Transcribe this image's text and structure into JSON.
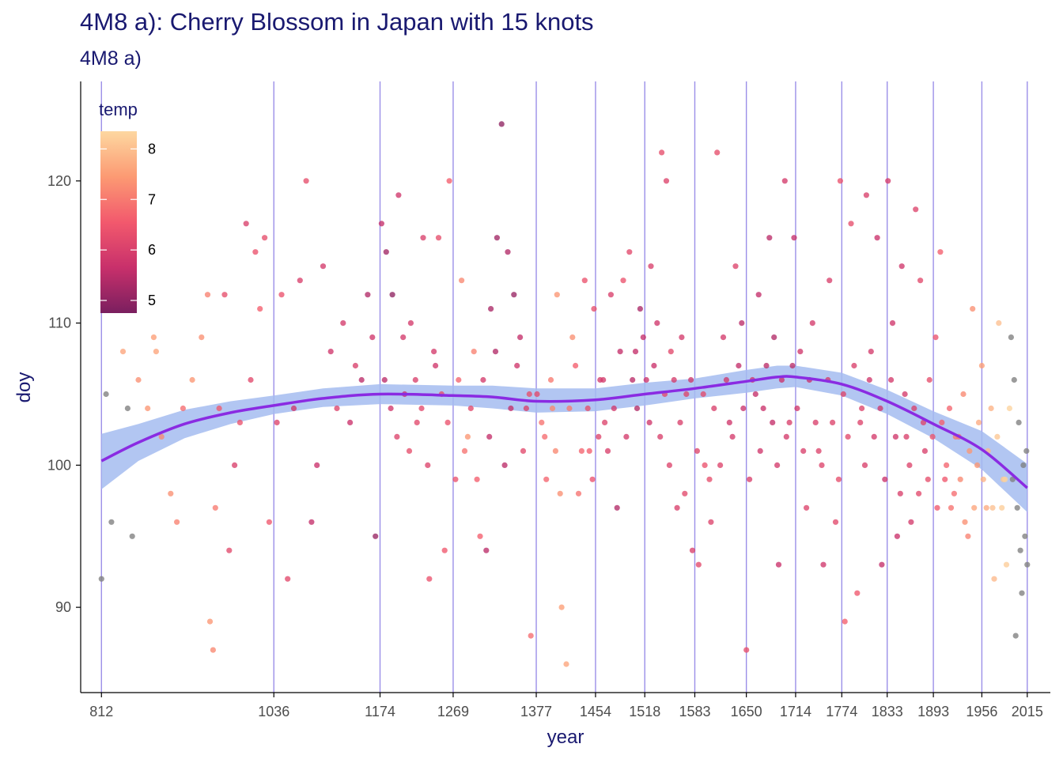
{
  "title": "4M8 a): Cherry Blossom in Japan with 15 knots",
  "subtitle": "4M8 a)",
  "colors": {
    "title_text": "#191970",
    "knot_line": "#9b8fe8",
    "spline": "#8a2be2",
    "ribbon": "#a4bcf0",
    "missing_temp_point": "#7f7f7f",
    "gradient": [
      "#7a1f5f",
      "#c8306b",
      "#f2596d",
      "#fc9a73",
      "#fdd7a0"
    ]
  },
  "chart_data": {
    "type": "scatter",
    "xlabel": "year",
    "ylabel": "doy",
    "xlim": [
      785,
      2045
    ],
    "ylim": [
      84,
      127
    ],
    "y_ticks": [
      90,
      100,
      110,
      120
    ],
    "x_ticks": [
      812,
      1036,
      1174,
      1269,
      1377,
      1454,
      1518,
      1583,
      1650,
      1714,
      1774,
      1833,
      1893,
      1956,
      2015
    ],
    "knots": [
      812,
      1036,
      1174,
      1269,
      1377,
      1454,
      1518,
      1583,
      1650,
      1714,
      1774,
      1833,
      1893,
      1956,
      2015
    ],
    "grid": false,
    "legend": {
      "title": "temp",
      "placement": "top-left",
      "range": [
        4.75,
        8.35
      ],
      "ticks": [
        5,
        6,
        7,
        8
      ]
    },
    "spline": {
      "x": [
        812,
        860,
        920,
        980,
        1036,
        1100,
        1174,
        1269,
        1320,
        1377,
        1454,
        1518,
        1583,
        1650,
        1690,
        1714,
        1774,
        1833,
        1893,
        1956,
        2015
      ],
      "y": [
        100.3,
        101.6,
        102.9,
        103.7,
        104.2,
        104.7,
        105.0,
        104.9,
        104.8,
        104.5,
        104.6,
        105.0,
        105.4,
        105.9,
        106.2,
        106.2,
        105.7,
        104.5,
        102.9,
        101.1,
        98.4
      ]
    },
    "ribbon": {
      "x": [
        812,
        860,
        920,
        980,
        1036,
        1100,
        1174,
        1269,
        1320,
        1377,
        1454,
        1518,
        1583,
        1650,
        1690,
        1714,
        1774,
        1833,
        1893,
        1956,
        2015
      ],
      "lower": [
        98.3,
        100.3,
        101.9,
        102.9,
        103.6,
        104.1,
        104.3,
        104.2,
        104.0,
        103.7,
        103.8,
        104.2,
        104.7,
        105.1,
        105.4,
        105.5,
        104.9,
        103.6,
        101.9,
        99.7,
        96.7
      ],
      "upper": [
        102.2,
        102.9,
        103.9,
        104.5,
        104.9,
        105.4,
        105.7,
        105.6,
        105.6,
        105.4,
        105.4,
        105.8,
        106.1,
        106.7,
        107.0,
        107.0,
        106.5,
        105.3,
        103.8,
        102.4,
        100.1
      ]
    },
    "points": [
      [
        812,
        92,
        null
      ],
      [
        818,
        105,
        null
      ],
      [
        825,
        96,
        null
      ],
      [
        840,
        108,
        7.6
      ],
      [
        846,
        104,
        null
      ],
      [
        852,
        95,
        null
      ],
      [
        860,
        106,
        7.3
      ],
      [
        872,
        104,
        7.4
      ],
      [
        880,
        109,
        7.5
      ],
      [
        883,
        108,
        7.6
      ],
      [
        890,
        102,
        7.2
      ],
      [
        902,
        98,
        7.3
      ],
      [
        910,
        96,
        7.1
      ],
      [
        918,
        104,
        6.8
      ],
      [
        930,
        106,
        7.4
      ],
      [
        942,
        109,
        7.3
      ],
      [
        950,
        112,
        7.1
      ],
      [
        953,
        89,
        7.4
      ],
      [
        957,
        87,
        7.2
      ],
      [
        960,
        97,
        7.0
      ],
      [
        965,
        104,
        6.5
      ],
      [
        972,
        112,
        6.3
      ],
      [
        978,
        94,
        6.2
      ],
      [
        985,
        100,
        6.0
      ],
      [
        992,
        103,
        6.4
      ],
      [
        1000,
        117,
        6.0
      ],
      [
        1006,
        106,
        6.2
      ],
      [
        1012,
        115,
        6.4
      ],
      [
        1018,
        111,
        6.6
      ],
      [
        1024,
        116,
        6.3
      ],
      [
        1030,
        96,
        6.5
      ],
      [
        1040,
        103,
        6.1
      ],
      [
        1046,
        112,
        6.4
      ],
      [
        1054,
        92,
        6.2
      ],
      [
        1062,
        104,
        5.8
      ],
      [
        1070,
        113,
        6.0
      ],
      [
        1078,
        120,
        6.3
      ],
      [
        1085,
        96,
        5.6
      ],
      [
        1092,
        100,
        5.7
      ],
      [
        1100,
        114,
        5.9
      ],
      [
        1110,
        108,
        5.8
      ],
      [
        1118,
        104,
        6.1
      ],
      [
        1126,
        110,
        5.9
      ],
      [
        1135,
        103,
        5.7
      ],
      [
        1142,
        107,
        6.0
      ],
      [
        1150,
        106,
        5.5
      ],
      [
        1158,
        112,
        5.4
      ],
      [
        1164,
        109,
        5.8
      ],
      [
        1168,
        95,
        5.1
      ],
      [
        1176,
        117,
        5.6
      ],
      [
        1182,
        115,
        5.2
      ],
      [
        1190,
        112,
        5.0
      ],
      [
        1198,
        119,
        5.8
      ],
      [
        1206,
        105,
        5.7
      ],
      [
        1214,
        110,
        5.9
      ],
      [
        1222,
        103,
        6.2
      ],
      [
        1230,
        116,
        6.0
      ],
      [
        1238,
        92,
        6.4
      ],
      [
        1244,
        108,
        5.9
      ],
      [
        1250,
        116,
        6.3
      ],
      [
        1258,
        94,
        6.5
      ],
      [
        1264,
        120,
        6.6
      ],
      [
        1272,
        99,
        6.4
      ],
      [
        1280,
        113,
        7.2
      ],
      [
        1288,
        102,
        7.4
      ],
      [
        1296,
        108,
        7.1
      ],
      [
        1304,
        95,
        6.6
      ],
      [
        1312,
        94,
        5.5
      ],
      [
        1318,
        111,
        5.3
      ],
      [
        1326,
        116,
        5.2
      ],
      [
        1332,
        124,
        5.0
      ],
      [
        1340,
        115,
        5.4
      ],
      [
        1348,
        112,
        5.1
      ],
      [
        1356,
        109,
        5.6
      ],
      [
        1364,
        104,
        6.0
      ],
      [
        1370,
        88,
        6.8
      ],
      [
        1378,
        105,
        6.2
      ],
      [
        1384,
        103,
        6.9
      ],
      [
        1390,
        99,
        6.7
      ],
      [
        1398,
        104,
        7.2
      ],
      [
        1404,
        112,
        7.4
      ],
      [
        1410,
        90,
        7.5
      ],
      [
        1416,
        86,
        7.6
      ],
      [
        1424,
        109,
        7.3
      ],
      [
        1432,
        98,
        6.9
      ],
      [
        1440,
        113,
        6.4
      ],
      [
        1446,
        101,
        6.6
      ],
      [
        1452,
        111,
        6.3
      ],
      [
        1460,
        106,
        5.9
      ],
      [
        1466,
        103,
        6.1
      ],
      [
        1474,
        112,
        6.0
      ],
      [
        1482,
        97,
        5.4
      ],
      [
        1490,
        113,
        6.4
      ],
      [
        1498,
        115,
        6.2
      ],
      [
        1506,
        108,
        5.6
      ],
      [
        1512,
        111,
        5.3
      ],
      [
        1520,
        106,
        5.7
      ],
      [
        1526,
        114,
        6.0
      ],
      [
        1534,
        110,
        5.8
      ],
      [
        1540,
        122,
        6.3
      ],
      [
        1546,
        120,
        6.1
      ],
      [
        1552,
        108,
        6.2
      ],
      [
        1560,
        97,
        6.0
      ],
      [
        1566,
        109,
        5.9
      ],
      [
        1572,
        105,
        6.1
      ],
      [
        1580,
        94,
        6.0
      ],
      [
        1588,
        93,
        6.2
      ],
      [
        1596,
        100,
        6.4
      ],
      [
        1604,
        96,
        6.1
      ],
      [
        1612,
        122,
        6.3
      ],
      [
        1620,
        109,
        5.9
      ],
      [
        1628,
        103,
        5.8
      ],
      [
        1636,
        114,
        6.1
      ],
      [
        1644,
        110,
        5.5
      ],
      [
        1650,
        87,
        6.3
      ],
      [
        1658,
        106,
        5.8
      ],
      [
        1666,
        112,
        5.6
      ],
      [
        1672,
        104,
        5.7
      ],
      [
        1680,
        116,
        5.5
      ],
      [
        1686,
        109,
        5.4
      ],
      [
        1692,
        93,
        5.7
      ],
      [
        1700,
        120,
        5.9
      ],
      [
        1706,
        103,
        6.0
      ],
      [
        1712,
        116,
        5.6
      ],
      [
        1720,
        108,
        5.8
      ],
      [
        1728,
        97,
        6.1
      ],
      [
        1736,
        110,
        5.9
      ],
      [
        1744,
        101,
        6.1
      ],
      [
        1750,
        93,
        5.8
      ],
      [
        1758,
        113,
        6.0
      ],
      [
        1766,
        96,
        6.2
      ],
      [
        1772,
        120,
        6.4
      ],
      [
        1778,
        89,
        6.6
      ],
      [
        1786,
        117,
        6.3
      ],
      [
        1794,
        91,
        6.5
      ],
      [
        1800,
        104,
        6.1
      ],
      [
        1806,
        119,
        6.0
      ],
      [
        1812,
        108,
        5.9
      ],
      [
        1820,
        116,
        5.7
      ],
      [
        1826,
        93,
        5.6
      ],
      [
        1834,
        120,
        5.9
      ],
      [
        1840,
        110,
        5.8
      ],
      [
        1846,
        95,
        5.7
      ],
      [
        1852,
        114,
        5.8
      ],
      [
        1858,
        102,
        6.0
      ],
      [
        1864,
        96,
        5.9
      ],
      [
        1870,
        118,
        6.1
      ],
      [
        1876,
        113,
        6.2
      ],
      [
        1882,
        101,
        6.0
      ],
      [
        1888,
        106,
        6.3
      ],
      [
        1896,
        109,
        6.4
      ],
      [
        1902,
        115,
        6.6
      ],
      [
        1908,
        99,
        6.5
      ],
      [
        1914,
        104,
        6.7
      ],
      [
        1920,
        98,
        6.8
      ],
      [
        1926,
        102,
        6.9
      ],
      [
        1932,
        105,
        7.2
      ],
      [
        1938,
        95,
        7.1
      ],
      [
        1944,
        111,
        7.3
      ],
      [
        1950,
        100,
        7.4
      ],
      [
        1956,
        107,
        7.5
      ],
      [
        1962,
        97,
        7.7
      ],
      [
        1968,
        104,
        7.8
      ],
      [
        1972,
        92,
        7.9
      ],
      [
        1978,
        110,
        8.0
      ],
      [
        1984,
        99,
        8.1
      ],
      [
        1988,
        93,
        8.2
      ],
      [
        1992,
        104,
        8.3
      ],
      [
        1994,
        109,
        null
      ],
      [
        1996,
        99,
        null
      ],
      [
        1998,
        106,
        null
      ],
      [
        2000,
        88,
        null
      ],
      [
        2002,
        97,
        null
      ],
      [
        2004,
        103,
        null
      ],
      [
        2006,
        94,
        null
      ],
      [
        2008,
        91,
        null
      ],
      [
        2010,
        100,
        null
      ],
      [
        2012,
        95,
        null
      ],
      [
        2014,
        101,
        null
      ],
      [
        2015,
        93,
        null
      ],
      [
        1180,
        106,
        5.5
      ],
      [
        1188,
        104,
        5.8
      ],
      [
        1196,
        102,
        6.1
      ],
      [
        1204,
        109,
        5.9
      ],
      [
        1212,
        101,
        6.3
      ],
      [
        1220,
        106,
        6.0
      ],
      [
        1228,
        104,
        6.2
      ],
      [
        1236,
        100,
        6.1
      ],
      [
        1246,
        107,
        5.8
      ],
      [
        1254,
        105,
        6.3
      ],
      [
        1262,
        103,
        6.4
      ],
      [
        1276,
        106,
        6.7
      ],
      [
        1284,
        101,
        6.9
      ],
      [
        1292,
        104,
        6.2
      ],
      [
        1300,
        99,
        6.6
      ],
      [
        1308,
        106,
        5.9
      ],
      [
        1316,
        102,
        5.6
      ],
      [
        1324,
        108,
        5.4
      ],
      [
        1336,
        100,
        5.5
      ],
      [
        1344,
        104,
        5.6
      ],
      [
        1352,
        107,
        5.8
      ],
      [
        1360,
        101,
        6.2
      ],
      [
        1368,
        105,
        6.3
      ],
      [
        1388,
        102,
        6.8
      ],
      [
        1396,
        106,
        7.0
      ],
      [
        1402,
        101,
        7.2
      ],
      [
        1408,
        98,
        7.3
      ],
      [
        1420,
        104,
        7.0
      ],
      [
        1428,
        107,
        6.6
      ],
      [
        1436,
        101,
        6.7
      ],
      [
        1444,
        104,
        6.3
      ],
      [
        1450,
        99,
        6.4
      ],
      [
        1458,
        102,
        6.1
      ],
      [
        1464,
        106,
        5.9
      ],
      [
        1470,
        101,
        6.0
      ],
      [
        1478,
        104,
        5.8
      ],
      [
        1486,
        108,
        5.6
      ],
      [
        1494,
        102,
        5.9
      ],
      [
        1502,
        106,
        5.5
      ],
      [
        1508,
        104,
        5.4
      ],
      [
        1516,
        109,
        5.6
      ],
      [
        1524,
        103,
        5.8
      ],
      [
        1530,
        107,
        5.7
      ],
      [
        1538,
        102,
        6.0
      ],
      [
        1544,
        105,
        6.2
      ],
      [
        1550,
        100,
        6.1
      ],
      [
        1556,
        106,
        5.9
      ],
      [
        1564,
        103,
        6.0
      ],
      [
        1570,
        98,
        6.2
      ],
      [
        1578,
        106,
        5.8
      ],
      [
        1586,
        101,
        6.1
      ],
      [
        1594,
        105,
        6.2
      ],
      [
        1602,
        99,
        6.3
      ],
      [
        1608,
        104,
        6.0
      ],
      [
        1616,
        100,
        6.1
      ],
      [
        1624,
        106,
        5.8
      ],
      [
        1632,
        102,
        5.9
      ],
      [
        1640,
        107,
        5.6
      ],
      [
        1646,
        104,
        5.7
      ],
      [
        1654,
        99,
        6.0
      ],
      [
        1662,
        105,
        5.6
      ],
      [
        1668,
        101,
        5.8
      ],
      [
        1676,
        107,
        5.5
      ],
      [
        1684,
        103,
        5.6
      ],
      [
        1690,
        100,
        5.9
      ],
      [
        1696,
        106,
        5.7
      ],
      [
        1702,
        102,
        5.9
      ],
      [
        1710,
        107,
        5.5
      ],
      [
        1716,
        104,
        5.8
      ],
      [
        1724,
        101,
        6.0
      ],
      [
        1732,
        106,
        5.7
      ],
      [
        1740,
        103,
        6.0
      ],
      [
        1748,
        100,
        6.1
      ],
      [
        1756,
        106,
        5.9
      ],
      [
        1762,
        103,
        6.1
      ],
      [
        1770,
        99,
        6.3
      ],
      [
        1776,
        105,
        6.1
      ],
      [
        1782,
        102,
        6.2
      ],
      [
        1790,
        107,
        6.0
      ],
      [
        1798,
        103,
        6.1
      ],
      [
        1804,
        100,
        6.0
      ],
      [
        1810,
        106,
        5.8
      ],
      [
        1816,
        102,
        5.9
      ],
      [
        1824,
        104,
        5.8
      ],
      [
        1830,
        99,
        5.7
      ],
      [
        1838,
        106,
        5.9
      ],
      [
        1844,
        102,
        5.8
      ],
      [
        1850,
        98,
        6.0
      ],
      [
        1856,
        105,
        5.9
      ],
      [
        1862,
        100,
        6.1
      ],
      [
        1868,
        104,
        6.0
      ],
      [
        1874,
        98,
        6.2
      ],
      [
        1880,
        103,
        6.1
      ],
      [
        1886,
        99,
        6.3
      ],
      [
        1892,
        102,
        6.4
      ],
      [
        1898,
        97,
        6.5
      ],
      [
        1904,
        103,
        6.6
      ],
      [
        1910,
        100,
        6.7
      ],
      [
        1916,
        97,
        6.9
      ],
      [
        1922,
        102,
        7.0
      ],
      [
        1928,
        99,
        7.2
      ],
      [
        1934,
        96,
        7.3
      ],
      [
        1940,
        101,
        7.4
      ],
      [
        1946,
        97,
        7.6
      ],
      [
        1952,
        103,
        7.7
      ],
      [
        1958,
        99,
        7.8
      ],
      [
        1964,
        101,
        7.9
      ],
      [
        1970,
        97,
        8.0
      ],
      [
        1976,
        102,
        8.1
      ],
      [
        1982,
        97,
        8.2
      ],
      [
        1986,
        99,
        8.3
      ]
    ]
  }
}
